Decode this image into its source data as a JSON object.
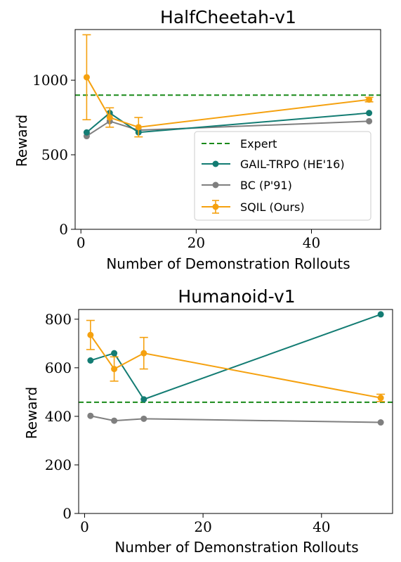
{
  "colors": {
    "expert": "#1a8a1a",
    "gail": "#137c73",
    "bc": "#7f7f7f",
    "sqil": "#f5a10f"
  },
  "legend": {
    "expert": "Expert",
    "gail": "GAIL-TRPO (HE'16)",
    "bc": "BC (P'91)",
    "sqil": "SQIL (Ours)"
  },
  "chart_data": [
    {
      "type": "line",
      "title": "HalfCheetah-v1",
      "xlabel": "Number of Demonstration Rollouts",
      "ylabel": "Reward",
      "xlim": [
        -1,
        52
      ],
      "ylim": [
        0,
        1340
      ],
      "xticks": [
        0,
        20,
        40
      ],
      "yticks": [
        0,
        500,
        1000
      ],
      "grid": false,
      "legend_position": "lower-right",
      "expert_level": 900,
      "series": [
        {
          "key": "gail",
          "name": "GAIL-TRPO (HE'16)",
          "x": [
            1,
            5,
            10,
            50
          ],
          "y": [
            650,
            780,
            650,
            780
          ]
        },
        {
          "key": "bc",
          "name": "BC (P'91)",
          "x": [
            1,
            5,
            10,
            50
          ],
          "y": [
            625,
            725,
            665,
            725
          ]
        },
        {
          "key": "sqil",
          "name": "SQIL (Ours)",
          "x": [
            1,
            5,
            10,
            50
          ],
          "y": [
            1020,
            750,
            685,
            870
          ],
          "err": [
            285,
            65,
            65,
            15
          ]
        }
      ]
    },
    {
      "type": "line",
      "title": "Humanoid-v1",
      "xlabel": "Number of Demonstration Rollouts",
      "ylabel": "Reward",
      "xlim": [
        -1,
        52
      ],
      "ylim": [
        0,
        840
      ],
      "xticks": [
        0,
        20,
        40
      ],
      "yticks": [
        0,
        200,
        400,
        600,
        800
      ],
      "grid": false,
      "legend_position": "none",
      "expert_level": 458,
      "series": [
        {
          "key": "gail",
          "name": "GAIL-TRPO (HE'16)",
          "x": [
            1,
            5,
            10,
            50
          ],
          "y": [
            630,
            660,
            470,
            820
          ]
        },
        {
          "key": "bc",
          "name": "BC (P'91)",
          "x": [
            1,
            5,
            10,
            50
          ],
          "y": [
            402,
            382,
            390,
            375
          ]
        },
        {
          "key": "sqil",
          "name": "SQIL (Ours)",
          "x": [
            1,
            5,
            10,
            50
          ],
          "y": [
            735,
            595,
            660,
            476
          ],
          "err": [
            60,
            50,
            65,
            15
          ]
        }
      ]
    }
  ]
}
